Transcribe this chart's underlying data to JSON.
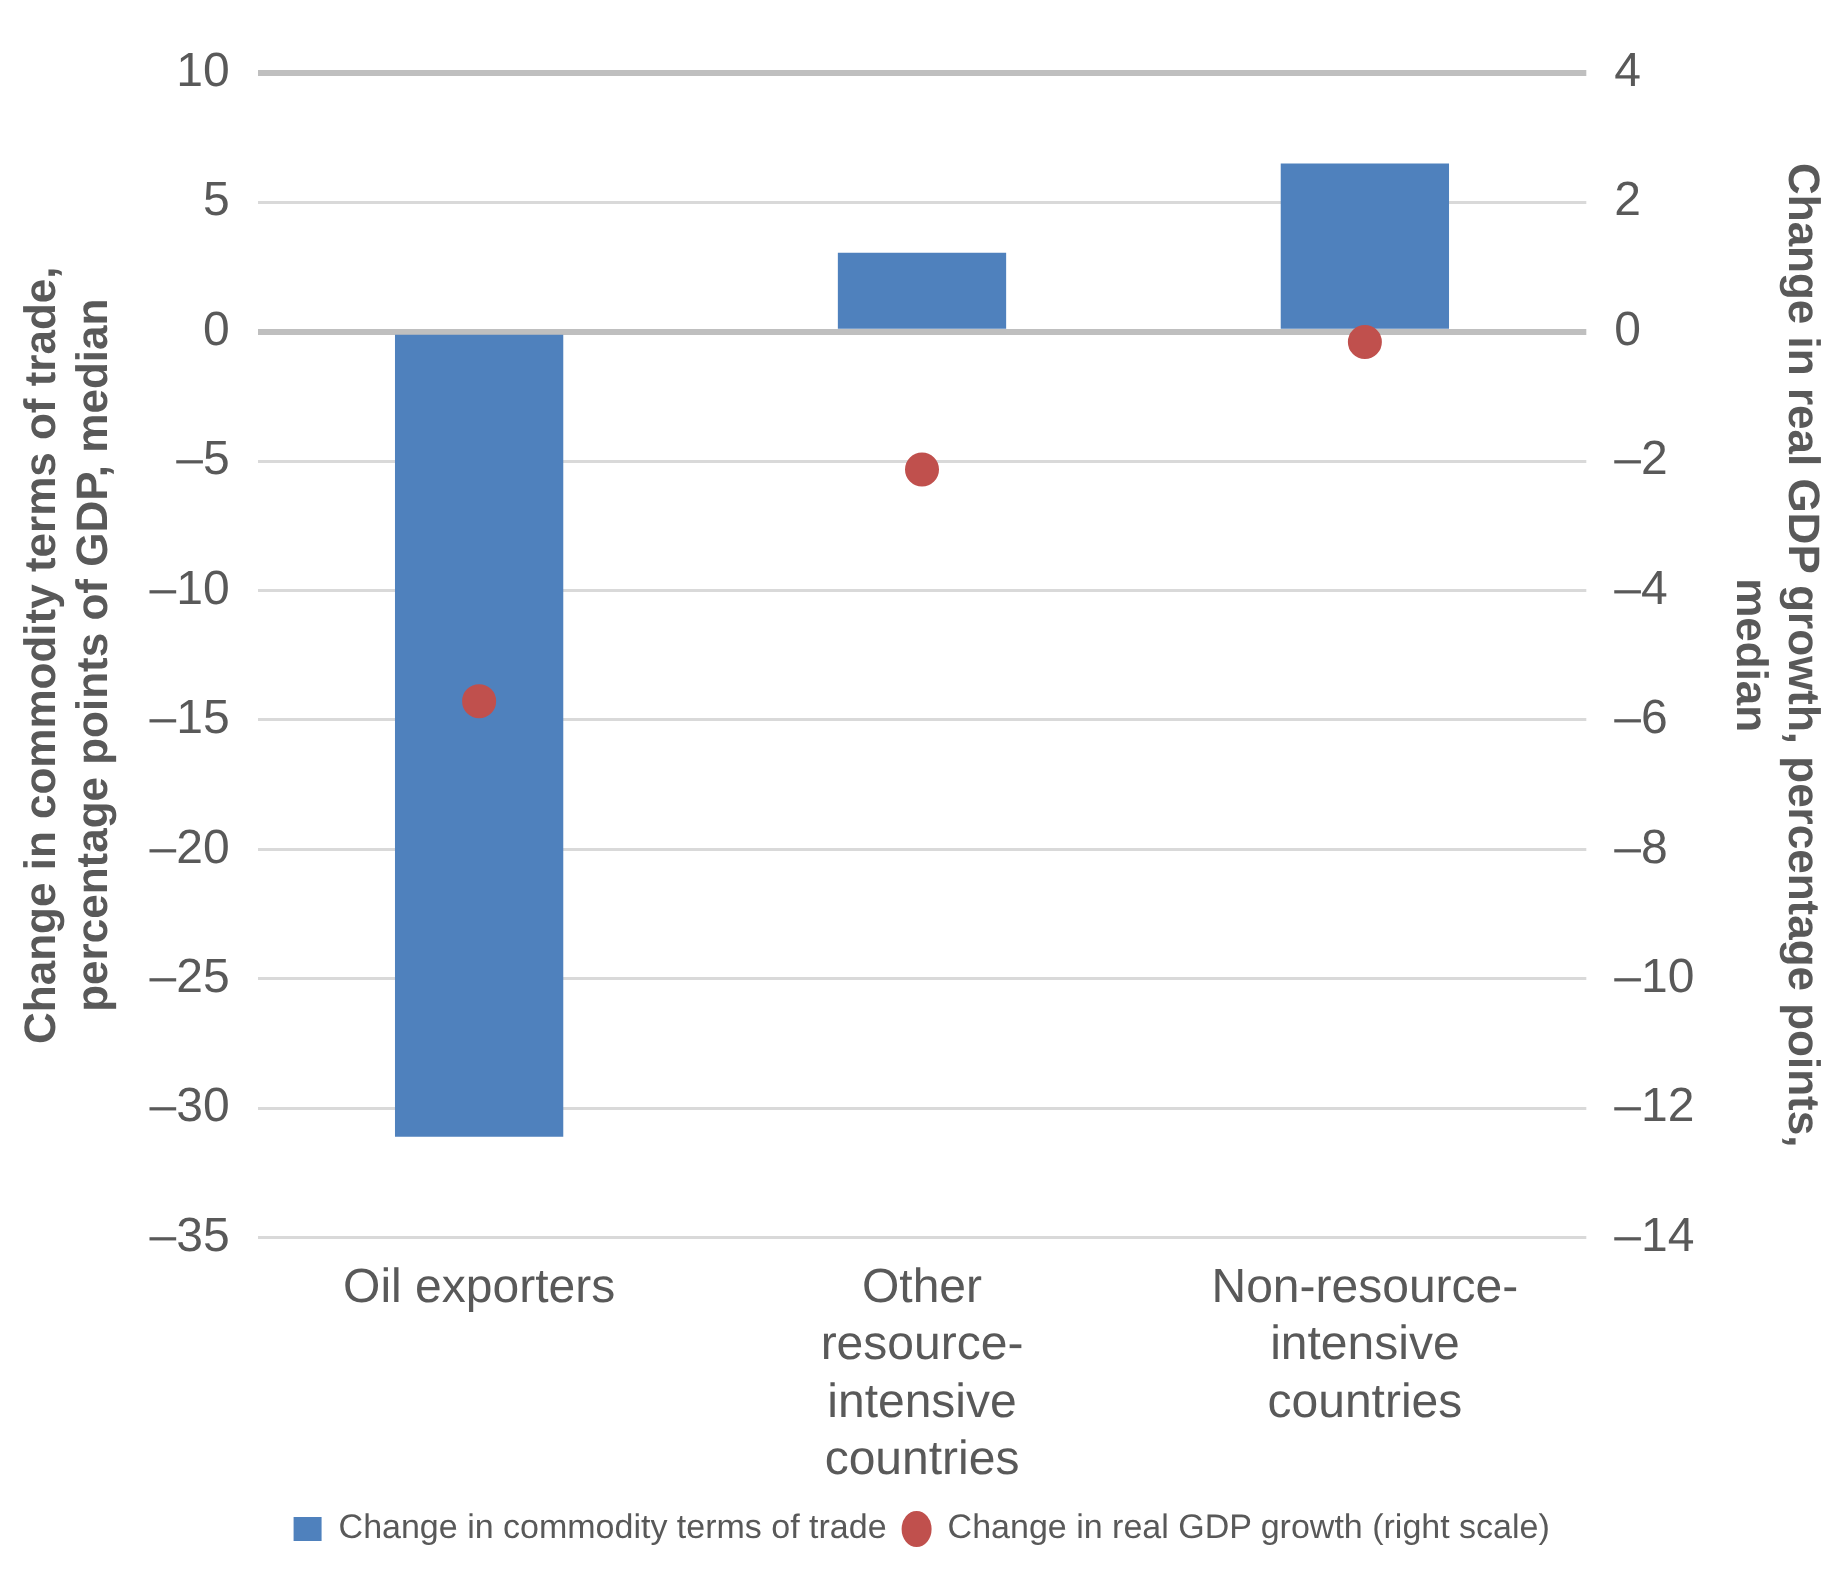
{
  "chart_data": {
    "type": "bar",
    "ylabel": "Change in commodity terms of trade, percentage points of GDP, median",
    "y2label": "Change in real GDP growth, percentage points, median",
    "categories": [
      "Oil exporters",
      "Other resource-intensive countries",
      "Non-resource-intensive countries"
    ],
    "series": [
      {
        "name": "Change in commodity terms of trade",
        "color": "#4f81bd",
        "values": [
          -31.1,
          3.05,
          6.5
        ]
      },
      {
        "name": "Change in real GDP growth (right scale)",
        "type": "scatter",
        "axis": "y2",
        "color": "#c0504d",
        "values": [
          -5.71,
          -2.13,
          -0.16
        ]
      }
    ],
    "ylim": [
      -35,
      10
    ],
    "yticks": [
      {
        "value": -35,
        "label": "–35"
      },
      {
        "value": -30,
        "label": "–30"
      },
      {
        "value": -25,
        "label": "–25"
      },
      {
        "value": -20,
        "label": "–20"
      },
      {
        "value": -15,
        "label": "–15"
      },
      {
        "value": -10,
        "label": "–10"
      },
      {
        "value": -5,
        "label": "–5"
      },
      0,
      5,
      10
    ],
    "y2lim": [
      -14,
      4
    ],
    "y2ticks": [
      {
        "value": -14,
        "label": "–14"
      },
      {
        "value": -12,
        "label": "–12"
      },
      {
        "value": -10,
        "label": "–10"
      },
      {
        "value": -8,
        "label": "–8"
      },
      {
        "value": -6,
        "label": "–6"
      },
      {
        "value": -4,
        "label": "–4"
      },
      {
        "value": -2,
        "label": "–2"
      },
      0,
      2,
      4
    ],
    "grid": "y",
    "legend": "bottom",
    "marker": "circle"
  }
}
